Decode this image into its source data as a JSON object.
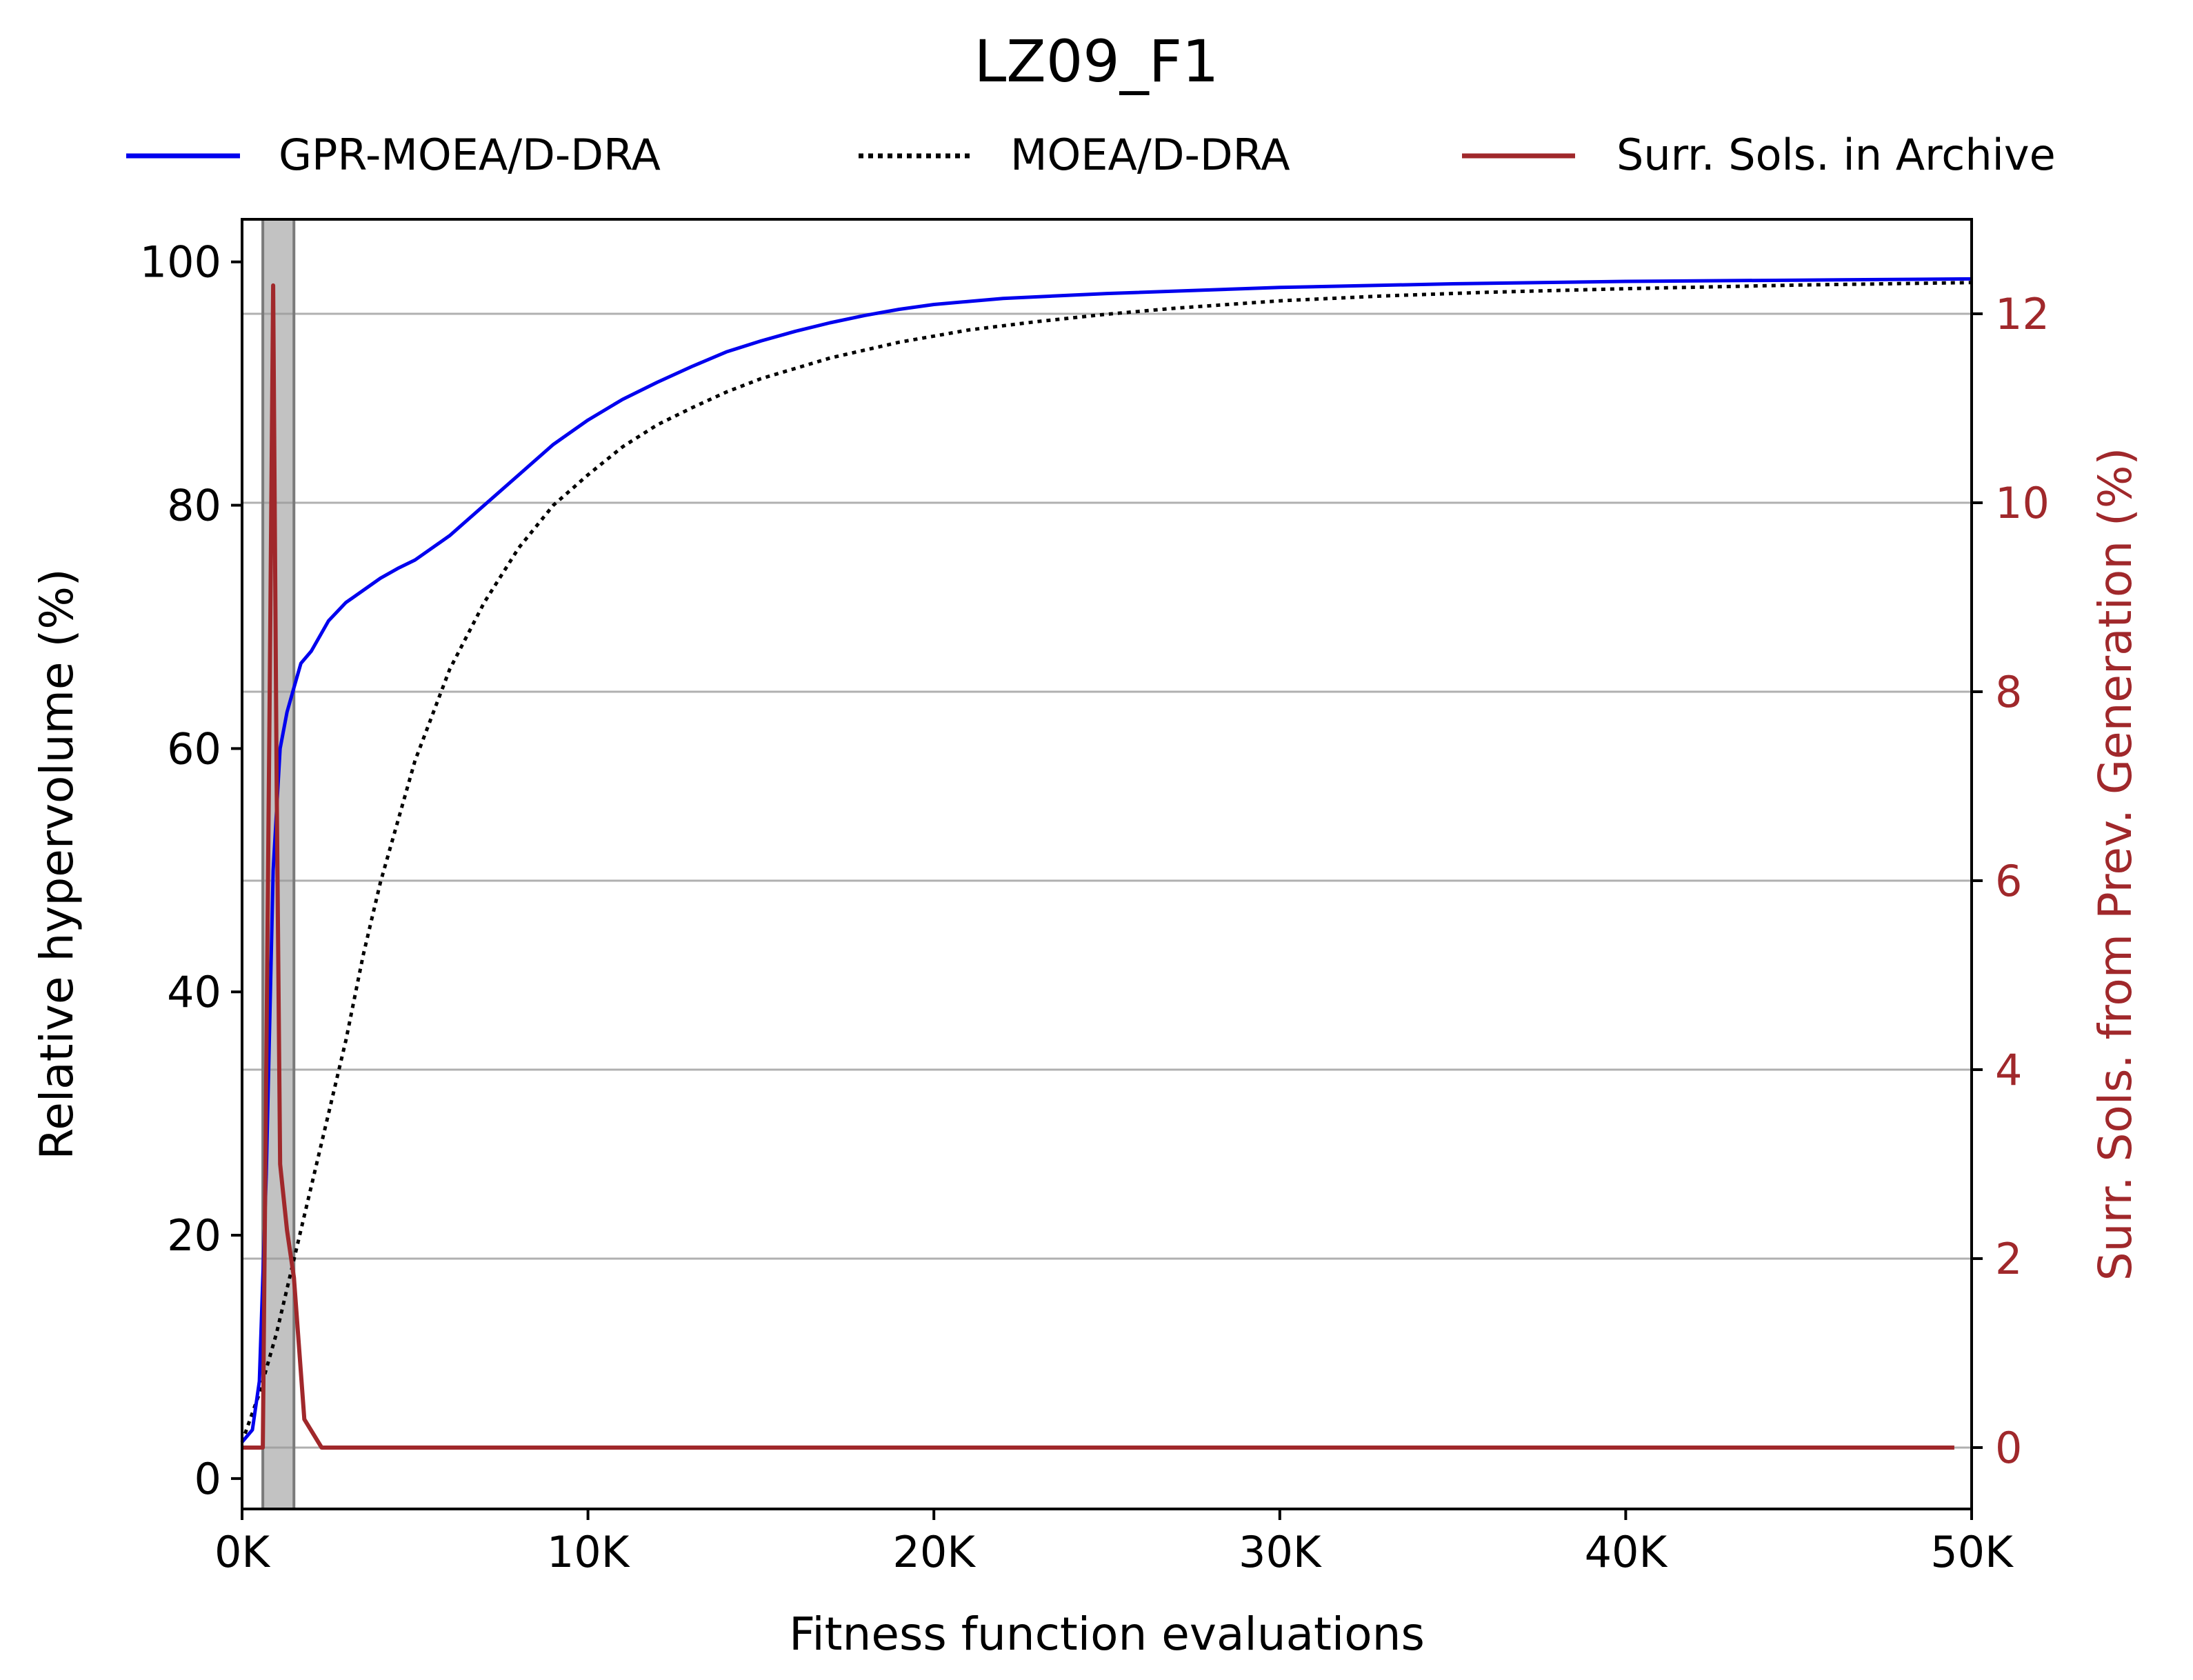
{
  "chart_data": {
    "type": "line",
    "title": "LZ09_F1",
    "xlabel": "Fitness function evaluations",
    "ylabel": "Relative hypervolume (%)",
    "y2label": "Surr. Sols. from Prev. Generation (%)",
    "xlim": [
      0,
      50000
    ],
    "ylim": [
      -2.5,
      103.5
    ],
    "y2lim": [
      -0.65,
      13
    ],
    "xticks": [
      0,
      10000,
      20000,
      30000,
      40000,
      50000
    ],
    "xtick_labels": [
      "0K",
      "10K",
      "20K",
      "30K",
      "40K",
      "50K"
    ],
    "yticks": [
      0,
      20,
      40,
      60,
      80,
      100
    ],
    "ytick_labels": [
      "0",
      "20",
      "40",
      "60",
      "80",
      "100"
    ],
    "y2ticks": [
      0,
      2,
      4,
      6,
      8,
      10,
      12
    ],
    "y2tick_labels": [
      "0",
      "2",
      "4",
      "6",
      "8",
      "10",
      "12"
    ],
    "grid": "horizontal lines at right-axis ticks",
    "legend_position": "top, above plot",
    "shaded_region": {
      "x": [
        600,
        1500
      ],
      "color": "#999999"
    },
    "colors": {
      "gpr": "#0000ee",
      "moead": "#000000",
      "surr": "#a0282b",
      "axis2": "#a0282b"
    },
    "series": [
      {
        "name": "GPR-MOEA/D-DRA",
        "axis": "left",
        "style": "solid",
        "x": [
          0,
          300,
          500,
          700,
          900,
          1100,
          1300,
          1500,
          1700,
          2000,
          2500,
          3000,
          3500,
          4000,
          4500,
          5000,
          6000,
          7000,
          8000,
          9000,
          10000,
          11000,
          12000,
          13000,
          14000,
          15000,
          16000,
          17000,
          18000,
          19000,
          20000,
          22000,
          25000,
          30000,
          35000,
          40000,
          45000,
          50000
        ],
        "values": [
          3,
          4,
          8,
          25,
          50,
          60,
          63,
          65,
          67,
          68,
          70.5,
          72,
          73,
          74,
          74.8,
          75.5,
          77.5,
          80,
          82.5,
          85,
          87,
          88.7,
          90.1,
          91.4,
          92.6,
          93.5,
          94.3,
          95,
          95.6,
          96.1,
          96.5,
          97,
          97.4,
          97.9,
          98.2,
          98.4,
          98.5,
          98.6
        ]
      },
      {
        "name": "MOEA/D-DRA",
        "axis": "left",
        "style": "dotted",
        "x": [
          0,
          500,
          1000,
          1500,
          2000,
          2500,
          3000,
          3500,
          4000,
          5000,
          6000,
          7000,
          8000,
          9000,
          10000,
          11000,
          12000,
          13000,
          14000,
          15000,
          17000,
          19000,
          21000,
          23000,
          25000,
          27000,
          30000,
          33000,
          36000,
          40000,
          45000,
          50000
        ],
        "values": [
          3,
          7,
          12,
          18,
          24,
          30,
          36,
          43,
          49,
          59,
          66.5,
          72,
          76.5,
          80,
          82.5,
          84.8,
          86.6,
          88,
          89.3,
          90.4,
          92.1,
          93.4,
          94.4,
          95.1,
          95.7,
          96.2,
          96.8,
          97.2,
          97.5,
          97.8,
          98.1,
          98.3
        ]
      },
      {
        "name": "Surr. Sols. in Archive",
        "axis": "right",
        "style": "solid",
        "x": [
          0,
          300,
          600,
          800,
          900,
          1000,
          1100,
          1300,
          1500,
          1800,
          2300,
          3000,
          10000,
          20000,
          30000,
          40000,
          49500
        ],
        "values": [
          0,
          0,
          0,
          8,
          12.3,
          7,
          3,
          2.3,
          1.8,
          0.3,
          0,
          0,
          0,
          0,
          0,
          0,
          0
        ]
      }
    ]
  }
}
